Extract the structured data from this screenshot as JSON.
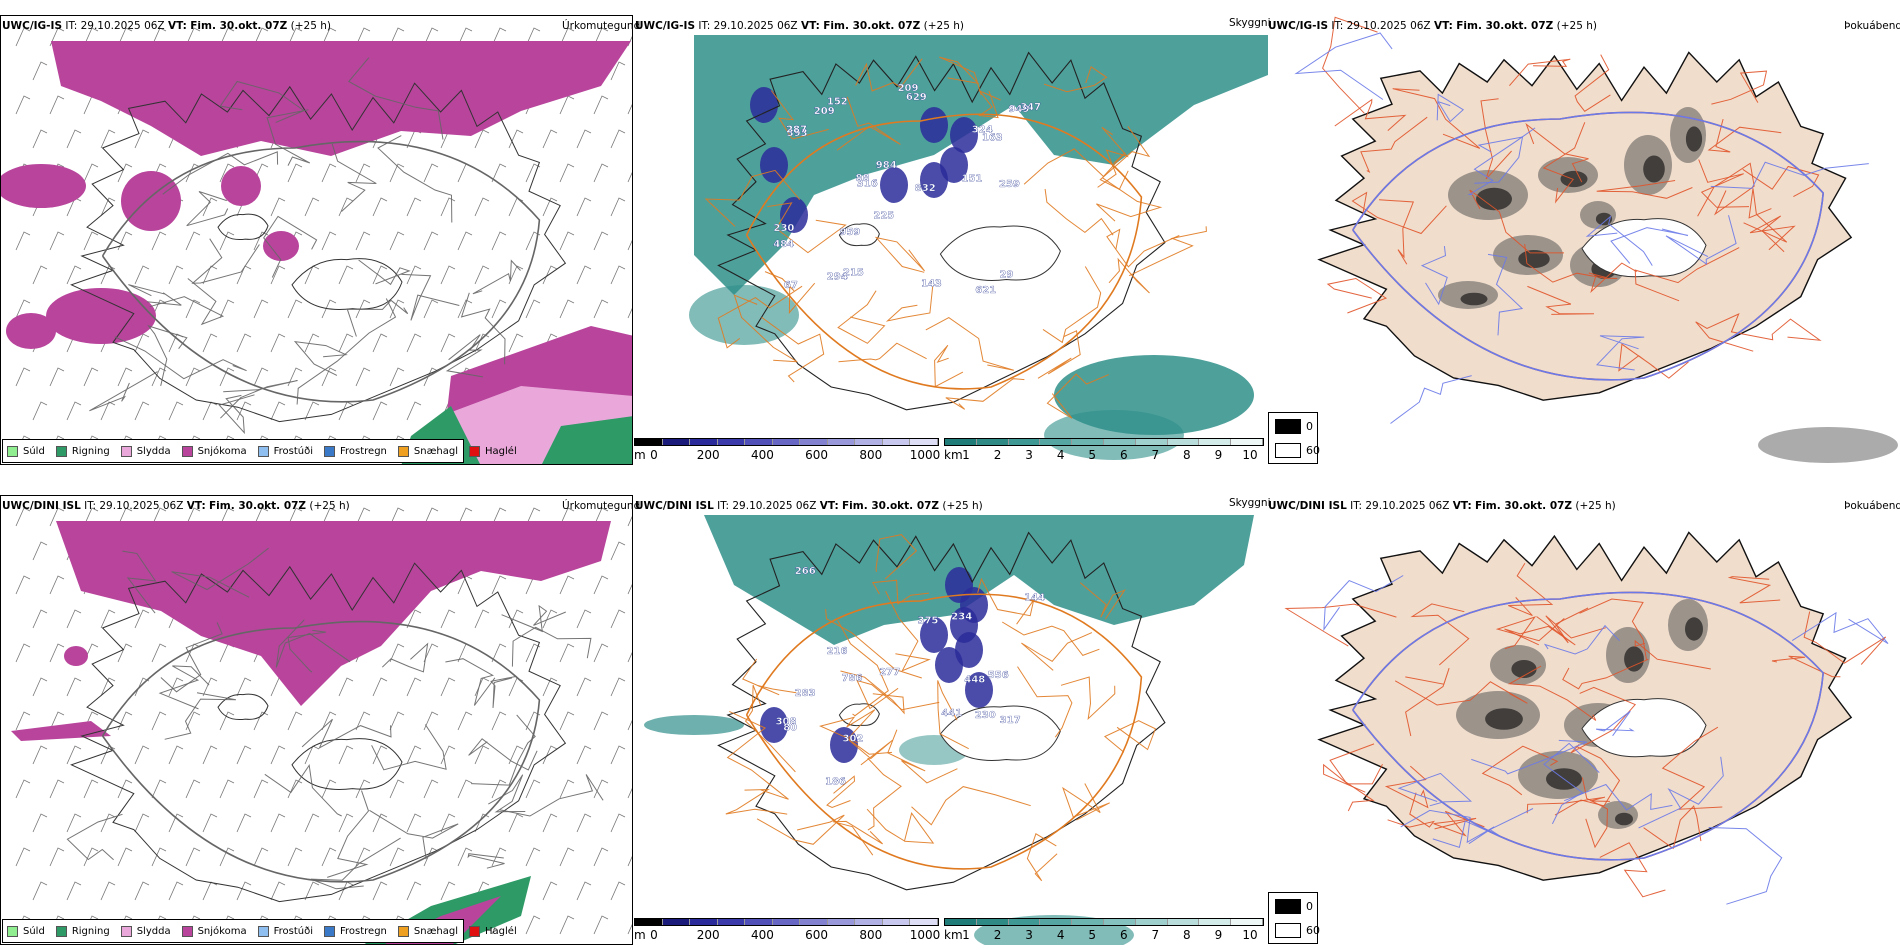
{
  "colors": {
    "snow": "#b8449c",
    "rain": "#2e9a66",
    "sleet": "#eaa8da",
    "visibility_teal": "#2f8f8a",
    "roads": "#e07a20",
    "terrain_fill": "#f1ddcc",
    "coast": "#222222"
  },
  "rows": [
    {
      "precip": {
        "model": "UWC/IG-IS",
        "it_label": "IT:",
        "it_value": "29.10.2025 06Z",
        "vt_label": "VT:",
        "vt_value": "Fim. 30.okt. 07Z",
        "lead": "(+25 h)",
        "variable": "Úrkomutegund"
      },
      "visibility": {
        "model": "UWC/IG-IS",
        "it_label": "IT:",
        "it_value": "29.10.2025 06Z",
        "vt_label": "VT:",
        "vt_value": "Fim. 30.okt. 07Z",
        "lead": "(+25 h)",
        "variable": "Skyggni",
        "values": [
          "209",
          "259",
          "316",
          "621",
          "484",
          "393",
          "832",
          "294",
          "959",
          "949",
          "324",
          "152",
          "287",
          "347",
          "215",
          "629",
          "67",
          "163",
          "209",
          "143",
          "230",
          "88",
          "151",
          "984",
          "225",
          "29"
        ]
      },
      "fog": {
        "model": "UWC/IG-IS",
        "it_label": "IT:",
        "it_value": "29.10.2025 06Z",
        "vt_label": "VT:",
        "vt_value": "Fim. 30.okt. 07Z",
        "lead": "(+25 h)",
        "variable": "Þokuábendi"
      }
    },
    {
      "precip": {
        "model": "UWC/DINI ISL",
        "it_label": "IT:",
        "it_value": "29.10.2025 06Z",
        "vt_label": "VT:",
        "vt_value": "Fim. 30.okt. 07Z",
        "lead": "(+25 h)",
        "variable": "Úrkomutegund"
      },
      "visibility": {
        "model": "UWC/DINI ISL",
        "it_label": "IT:",
        "it_value": "29.10.2025 06Z",
        "vt_label": "VT:",
        "vt_value": "Fim. 30.okt. 07Z",
        "lead": "(+25 h)",
        "variable": "Skyggni",
        "values": [
          "186",
          "441",
          "786",
          "302",
          "317",
          "234",
          "283",
          "144",
          "448",
          "308",
          "216",
          "230",
          "277",
          "80",
          "266",
          "375",
          "556"
        ]
      },
      "fog": {
        "model": "UWC/DINI ISL",
        "it_label": "IT:",
        "it_value": "29.10.2025 06Z",
        "vt_label": "VT:",
        "vt_value": "Fim. 30.okt. 07Z",
        "lead": "(+25 h)",
        "variable": "Þokuábendi"
      }
    }
  ],
  "precip_legend": [
    {
      "label": "Súld",
      "color": "#90ee90"
    },
    {
      "label": "Rigning",
      "color": "#2e9a66"
    },
    {
      "label": "Slydda",
      "color": "#eaa8da"
    },
    {
      "label": "Snjókoma",
      "color": "#b8449c"
    },
    {
      "label": "Frostúði",
      "color": "#8fbef0"
    },
    {
      "label": "Frostregn",
      "color": "#3a78c8"
    },
    {
      "label": "Snæhagl",
      "color": "#f0a020"
    },
    {
      "label": "Haglél",
      "color": "#e01010"
    }
  ],
  "elevation_bar": {
    "unit": "m",
    "ticks": [
      "0",
      "200",
      "400",
      "600",
      "800",
      "1000"
    ],
    "colors": [
      "#000000",
      "#1a1a7a",
      "#2a2a9a",
      "#3a3aaa",
      "#5050b8",
      "#6868c4",
      "#8282d0",
      "#9898da",
      "#b0b0e4",
      "#c8c8ee",
      "#dedef6"
    ]
  },
  "visibility_bar": {
    "unit": "km",
    "ticks": [
      "1",
      "2",
      "3",
      "4",
      "5",
      "6",
      "7",
      "8",
      "9",
      "10"
    ],
    "colors": [
      "#1f7c78",
      "#2f8a86",
      "#3f9894",
      "#55a6a2",
      "#6bb4b0",
      "#85c2bf",
      "#9fd0cd",
      "#b9dddb",
      "#d3ebe9",
      "#edf7f6"
    ]
  },
  "fog_legend": {
    "items": [
      {
        "label": "0",
        "color": "#000000"
      },
      {
        "label": "60",
        "color": "#ffffff"
      }
    ]
  }
}
